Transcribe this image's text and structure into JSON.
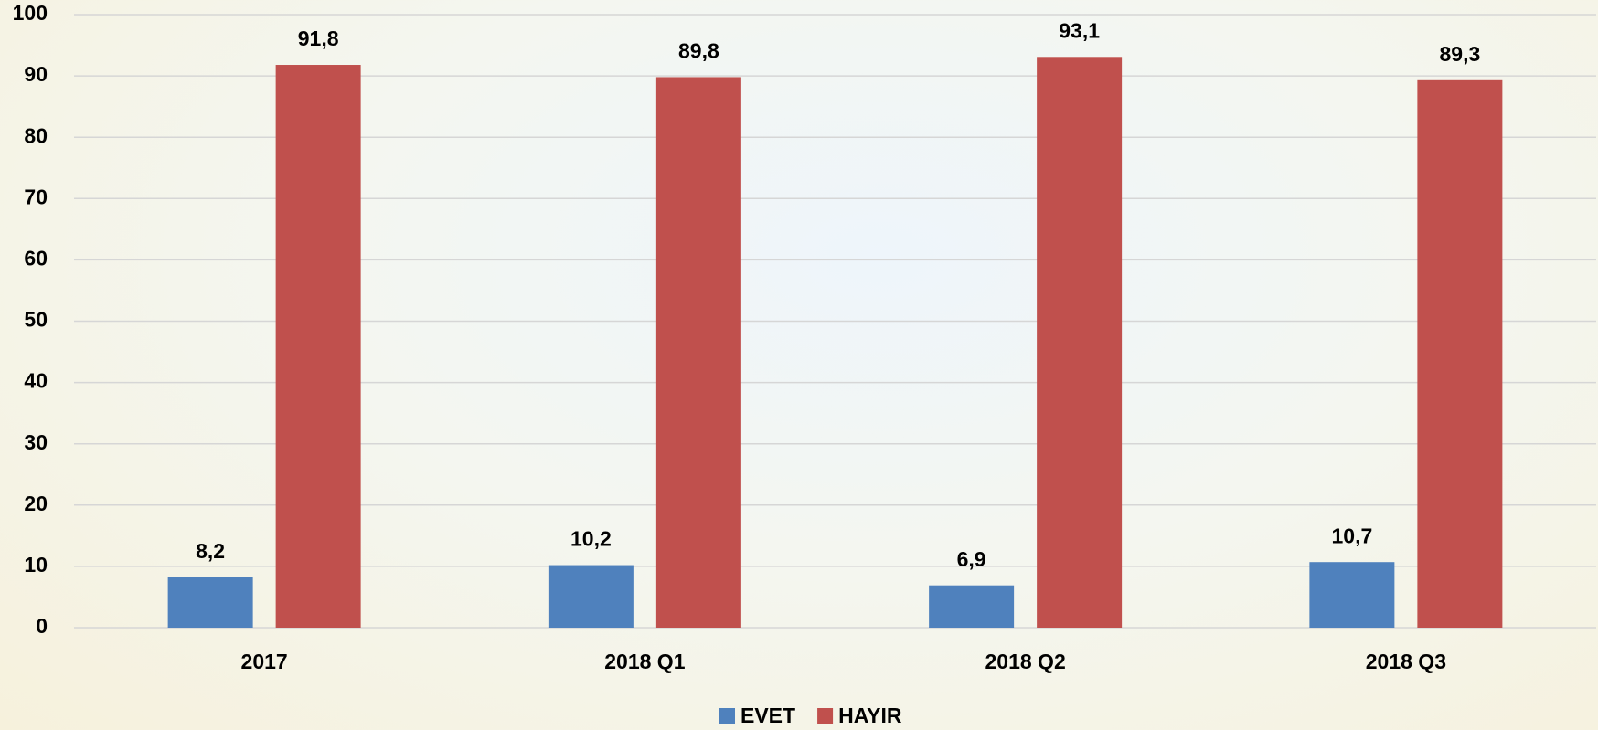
{
  "chart_data": {
    "type": "bar",
    "categories": [
      "2017",
      "2018 Q1",
      "2018 Q2",
      "2018 Q3"
    ],
    "series": [
      {
        "name": "EVET",
        "color": "#4f81bd",
        "values": [
          8.2,
          10.2,
          6.9,
          10.7
        ],
        "value_labels": [
          "8,2",
          "10,2",
          "6,9",
          "10,7"
        ]
      },
      {
        "name": "HAYIR",
        "color": "#c0504d",
        "values": [
          91.8,
          89.8,
          93.1,
          89.3
        ],
        "value_labels": [
          "91,8",
          "89,8",
          "93,1",
          "89,3"
        ]
      }
    ],
    "ylim": [
      0,
      100
    ],
    "yticks": [
      0,
      10,
      20,
      30,
      40,
      50,
      60,
      70,
      80,
      90,
      100
    ],
    "grid": true,
    "legend": "bottom"
  }
}
